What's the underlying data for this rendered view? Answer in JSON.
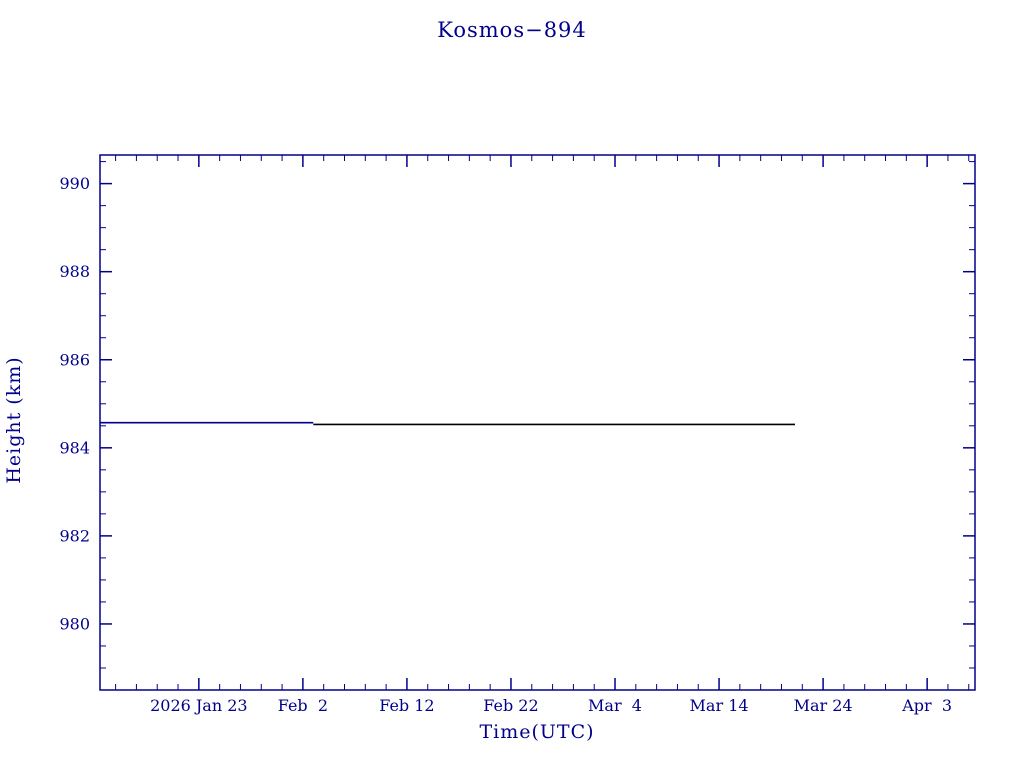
{
  "page": {
    "background": "#ffffff",
    "accent_color": "#00008b"
  },
  "chart_data": {
    "type": "line",
    "title": "Kosmos−894",
    "xlabel": "Time(UTC)",
    "ylabel": "Height (km)",
    "axis_color": "#00008b",
    "grid": false,
    "legend": "none",
    "ylim": [
      978.5,
      990.65
    ],
    "y_ticks": [
      980,
      982,
      984,
      986,
      988,
      990
    ],
    "y_minor_step": 0.5,
    "x_unit": "days relative to 2026 Jan 23",
    "x_range_days": [
      -9.5,
      74.6
    ],
    "x_minor_step_days": 2,
    "x_ticks": [
      {
        "day": 0,
        "label": "2026 Jan 23"
      },
      {
        "day": 10,
        "label": "Feb  2"
      },
      {
        "day": 20,
        "label": "Feb 12"
      },
      {
        "day": 30,
        "label": "Feb 22"
      },
      {
        "day": 40,
        "label": "Mar  4"
      },
      {
        "day": 50,
        "label": "Mar 14"
      },
      {
        "day": 60,
        "label": "Mar 24"
      },
      {
        "day": 70,
        "label": "Apr  3"
      }
    ],
    "series": [
      {
        "name": "height-early-segment",
        "color": "#00008b",
        "points": [
          [
            -9.5,
            984.57
          ],
          [
            11,
            984.57
          ]
        ]
      },
      {
        "name": "height-later-segment",
        "color": "#000000",
        "points": [
          [
            11,
            984.53
          ],
          [
            57.3,
            984.53
          ]
        ]
      }
    ]
  }
}
